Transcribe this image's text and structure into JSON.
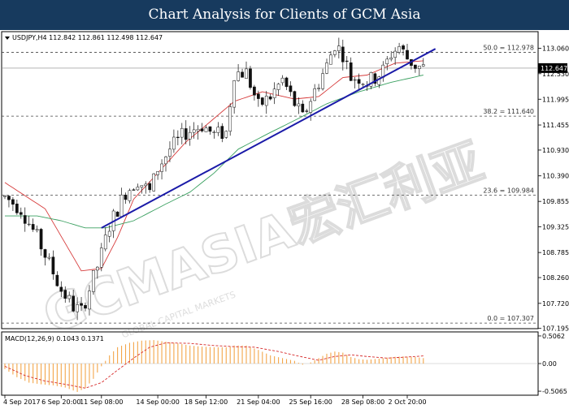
{
  "banner": {
    "title": "Chart Analysis for Clients of GCM Asia"
  },
  "watermark": {
    "main": "GCMASIA宏汇利亚",
    "sub": "GLOBAL CAPITAL MARKETS"
  },
  "colors": {
    "banner_bg": "#173a5e",
    "bull": "#1a7a1a",
    "bear": "#b02020",
    "ma_fast": "#d63a3a",
    "ma_slow": "#3aa060",
    "trendline": "#1a1aa8",
    "macd_hist": "#f3a64a",
    "macd_signal": "#d62828",
    "grid": "#444444",
    "price_marker": "#000000"
  },
  "chart_data": [
    {
      "type": "candlestick",
      "header": "USDJPY,H4  112.842 112.861 112.498 112.647",
      "x_tick_labels": [
        "4 Sep 2017",
        "6 Sep 20:00",
        "11 Sep 08:00",
        "14 Sep 00:00",
        "18 Sep 12:00",
        "21 Sep 04:00",
        "25 Sep 16:00",
        "28 Sep 08:00",
        "2 Oct 20:00"
      ],
      "y_tick_labels": [
        "113.060",
        "112.530",
        "111.995",
        "111.455",
        "110.930",
        "110.390",
        "109.855",
        "109.325",
        "108.785",
        "108.260",
        "107.720",
        "107.195"
      ],
      "ylim": [
        107.19,
        113.41
      ],
      "current_price": "112.647",
      "candles": {
        "anchors": [
          [
            0,
            109.95
          ],
          [
            4,
            109.7
          ],
          [
            8,
            109.1
          ],
          [
            11,
            108.55
          ],
          [
            14,
            108.0
          ],
          [
            17,
            107.65
          ],
          [
            19,
            107.55
          ],
          [
            22,
            108.25
          ],
          [
            24,
            108.75
          ],
          [
            26,
            109.35
          ],
          [
            30,
            110.05
          ],
          [
            33,
            110.3
          ],
          [
            36,
            110.05
          ],
          [
            38,
            110.55
          ],
          [
            41,
            110.95
          ],
          [
            45,
            111.3
          ],
          [
            49,
            111.45
          ],
          [
            52,
            111.25
          ],
          [
            55,
            111.3
          ],
          [
            57,
            112.55
          ],
          [
            60,
            112.55
          ],
          [
            63,
            111.85
          ],
          [
            66,
            112.05
          ],
          [
            69,
            112.4
          ],
          [
            72,
            111.9
          ],
          [
            74,
            111.6
          ],
          [
            76,
            112.0
          ],
          [
            78,
            112.35
          ],
          [
            80,
            112.7
          ],
          [
            82,
            113.15
          ],
          [
            84,
            112.95
          ],
          [
            86,
            112.45
          ],
          [
            88,
            112.45
          ],
          [
            90,
            112.35
          ],
          [
            92,
            112.45
          ],
          [
            94,
            112.6
          ],
          [
            96,
            112.95
          ],
          [
            98,
            113.1
          ],
          [
            100,
            112.85
          ],
          [
            102,
            112.7
          ],
          [
            104,
            112.65
          ]
        ],
        "count": 105
      },
      "moving_averages": [
        {
          "name": "",
          "color": "#d63a3a",
          "points": [
            [
              0,
              110.25
            ],
            [
              10,
              109.7
            ],
            [
              19,
              108.4
            ],
            [
              24,
              108.45
            ],
            [
              28,
              109.1
            ],
            [
              32,
              109.9
            ],
            [
              38,
              110.45
            ],
            [
              45,
              111.1
            ],
            [
              50,
              111.45
            ],
            [
              57,
              111.95
            ],
            [
              64,
              112.15
            ],
            [
              72,
              112.0
            ],
            [
              78,
              112.05
            ],
            [
              84,
              112.45
            ],
            [
              90,
              112.5
            ],
            [
              97,
              112.75
            ],
            [
              104,
              112.8
            ]
          ]
        },
        {
          "name": "",
          "color": "#3aa060",
          "points": [
            [
              0,
              109.55
            ],
            [
              8,
              109.55
            ],
            [
              14,
              109.45
            ],
            [
              20,
              109.3
            ],
            [
              25,
              109.3
            ],
            [
              32,
              109.45
            ],
            [
              40,
              109.8
            ],
            [
              46,
              110.05
            ],
            [
              52,
              110.45
            ],
            [
              58,
              110.95
            ],
            [
              66,
              111.3
            ],
            [
              72,
              111.55
            ],
            [
              80,
              111.9
            ],
            [
              88,
              112.15
            ],
            [
              96,
              112.35
            ],
            [
              104,
              112.5
            ]
          ]
        }
      ],
      "trendline": {
        "color": "#1a1aa8",
        "from": [
          24,
          109.3
        ],
        "to": [
          107,
          113.05
        ]
      },
      "fibonacci_levels": [
        {
          "label": "50.0 = 112.978",
          "value": 112.978
        },
        {
          "label": "38.2 = 111.640",
          "value": 111.64
        },
        {
          "label": "23.6 = 109.984",
          "value": 109.984
        },
        {
          "label": "0.0 = 107.307",
          "value": 107.307
        }
      ]
    },
    {
      "type": "bar",
      "header": "MACD(12,26,9) 0.1043 0.1371",
      "y_tick_labels": [
        "0.5062",
        "0.00",
        "-0.5065"
      ],
      "ylim": [
        -0.58,
        0.58
      ],
      "histogram_anchors": [
        [
          0,
          -0.1
        ],
        [
          3,
          -0.25
        ],
        [
          6,
          -0.35
        ],
        [
          9,
          -0.38
        ],
        [
          12,
          -0.4
        ],
        [
          15,
          -0.44
        ],
        [
          18,
          -0.52
        ],
        [
          20,
          -0.45
        ],
        [
          22,
          -0.28
        ],
        [
          24,
          -0.05
        ],
        [
          26,
          0.15
        ],
        [
          28,
          0.3
        ],
        [
          31,
          0.38
        ],
        [
          34,
          0.42
        ],
        [
          37,
          0.43
        ],
        [
          40,
          0.4
        ],
        [
          43,
          0.37
        ],
        [
          46,
          0.33
        ],
        [
          49,
          0.31
        ],
        [
          52,
          0.3
        ],
        [
          55,
          0.3
        ],
        [
          57,
          0.33
        ],
        [
          60,
          0.33
        ],
        [
          63,
          0.25
        ],
        [
          66,
          0.15
        ],
        [
          69,
          0.1
        ],
        [
          72,
          0.05
        ],
        [
          74,
          -0.02
        ],
        [
          76,
          0.02
        ],
        [
          78,
          0.1
        ],
        [
          80,
          0.18
        ],
        [
          82,
          0.22
        ],
        [
          84,
          0.2
        ],
        [
          86,
          0.12
        ],
        [
          88,
          0.08
        ],
        [
          90,
          0.07
        ],
        [
          93,
          0.09
        ],
        [
          96,
          0.12
        ],
        [
          99,
          0.13
        ],
        [
          102,
          0.12
        ],
        [
          104,
          0.1
        ]
      ],
      "signal_anchors": [
        [
          0,
          -0.05
        ],
        [
          5,
          -0.22
        ],
        [
          10,
          -0.32
        ],
        [
          15,
          -0.38
        ],
        [
          20,
          -0.45
        ],
        [
          24,
          -0.35
        ],
        [
          28,
          -0.12
        ],
        [
          32,
          0.1
        ],
        [
          36,
          0.3
        ],
        [
          40,
          0.38
        ],
        [
          46,
          0.37
        ],
        [
          52,
          0.33
        ],
        [
          57,
          0.31
        ],
        [
          62,
          0.3
        ],
        [
          68,
          0.22
        ],
        [
          74,
          0.12
        ],
        [
          78,
          0.06
        ],
        [
          82,
          0.13
        ],
        [
          86,
          0.16
        ],
        [
          90,
          0.13
        ],
        [
          95,
          0.1
        ],
        [
          100,
          0.12
        ],
        [
          104,
          0.14
        ]
      ]
    }
  ]
}
